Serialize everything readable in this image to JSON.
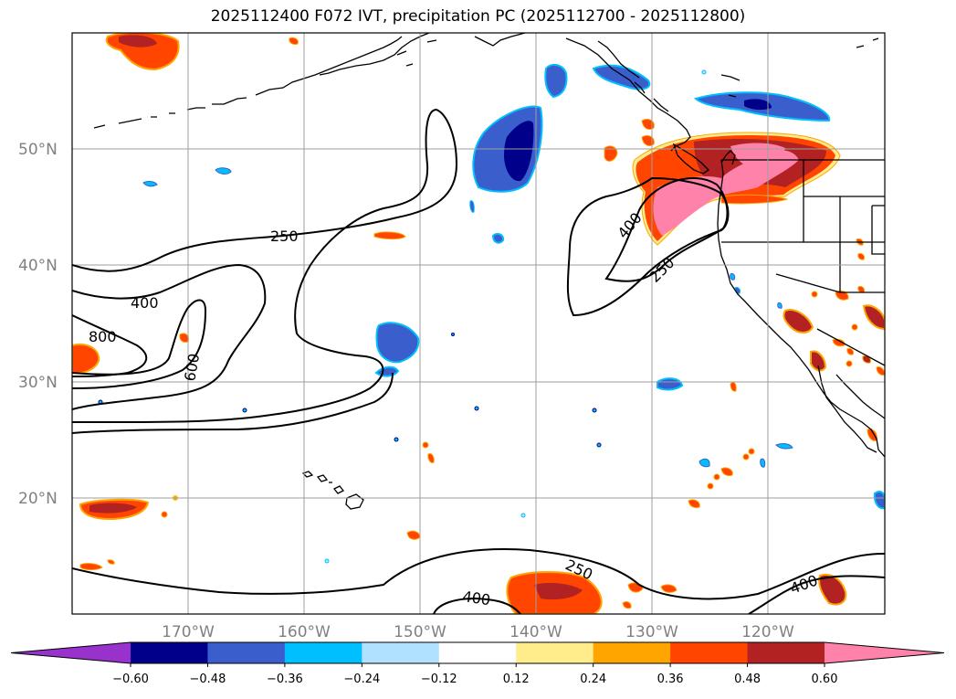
{
  "title": "2025112400 F072 IVT, precipitation PC (2025112700 - 2025112800)",
  "lat_labels": [
    "50°N",
    "40°N",
    "30°N",
    "20°N"
  ],
  "lon_labels": [
    "170°W",
    "160°W",
    "150°W",
    "140°W",
    "130°W",
    "120°W"
  ],
  "contour_labels": [
    "250",
    "400",
    "800",
    "600",
    "400",
    "250",
    "250",
    "400",
    "400"
  ],
  "colorbar": {
    "ticks": [
      "−0.60",
      "−0.48",
      "−0.36",
      "−0.24",
      "−0.12",
      "0.12",
      "0.24",
      "0.36",
      "0.48",
      "0.60"
    ],
    "colors": [
      "#9932cc",
      "#00008b",
      "#3a5fcd",
      "#00bfff",
      "#b0e2ff",
      "#ffffff",
      "#ffec8b",
      "#ffa500",
      "#ff4500",
      "#b22222",
      "#ff82ab"
    ]
  }
}
